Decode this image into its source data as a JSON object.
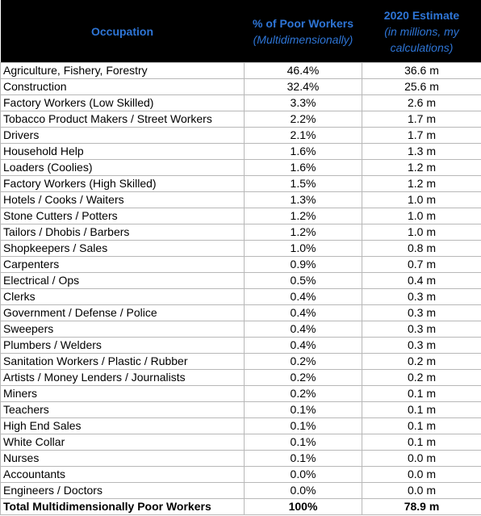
{
  "table": {
    "columns": [
      {
        "title": "Occupation"
      },
      {
        "title": "% of Poor Workers",
        "note": "(Multidimensionally)"
      },
      {
        "title": "2020 Estimate",
        "note": "(in millions, my calculations)"
      }
    ],
    "rows": [
      [
        "Agriculture, Fishery, Forestry",
        "46.4%",
        "36.6 m"
      ],
      [
        "Construction",
        "32.4%",
        "25.6 m"
      ],
      [
        "Factory Workers (Low Skilled)",
        "3.3%",
        "2.6 m"
      ],
      [
        "Tobacco Product Makers / Street Workers",
        "2.2%",
        "1.7 m"
      ],
      [
        "Drivers",
        "2.1%",
        "1.7 m"
      ],
      [
        "Household Help",
        "1.6%",
        "1.3 m"
      ],
      [
        "Loaders (Coolies)",
        "1.6%",
        "1.2 m"
      ],
      [
        "Factory Workers (High Skilled)",
        "1.5%",
        "1.2 m"
      ],
      [
        "Hotels / Cooks / Waiters",
        "1.3%",
        "1.0 m"
      ],
      [
        "Stone Cutters / Potters",
        "1.2%",
        "1.0 m"
      ],
      [
        "Tailors / Dhobis / Barbers",
        "1.2%",
        "1.0 m"
      ],
      [
        "Shopkeepers / Sales",
        "1.0%",
        "0.8 m"
      ],
      [
        "Carpenters",
        "0.9%",
        "0.7 m"
      ],
      [
        "Electrical / Ops",
        "0.5%",
        "0.4 m"
      ],
      [
        "Clerks",
        "0.4%",
        "0.3 m"
      ],
      [
        "Government / Defense / Police",
        "0.4%",
        "0.3 m"
      ],
      [
        "Sweepers",
        "0.4%",
        "0.3 m"
      ],
      [
        "Plumbers / Welders",
        "0.4%",
        "0.3 m"
      ],
      [
        "Sanitation Workers / Plastic / Rubber",
        "0.2%",
        "0.2 m"
      ],
      [
        "Artists / Money Lenders / Journalists",
        "0.2%",
        "0.2 m"
      ],
      [
        "Miners",
        "0.2%",
        "0.1 m"
      ],
      [
        "Teachers",
        "0.1%",
        "0.1 m"
      ],
      [
        "High End Sales",
        "0.1%",
        "0.1 m"
      ],
      [
        "White Collar",
        "0.1%",
        "0.1 m"
      ],
      [
        "Nurses",
        "0.1%",
        "0.0 m"
      ],
      [
        "Accountants",
        "0.0%",
        "0.0 m"
      ],
      [
        "Engineers / Doctors",
        "0.0%",
        "0.0 m"
      ]
    ],
    "total": [
      "Total Multidimensionally Poor Workers",
      "100%",
      "78.9 m"
    ]
  }
}
